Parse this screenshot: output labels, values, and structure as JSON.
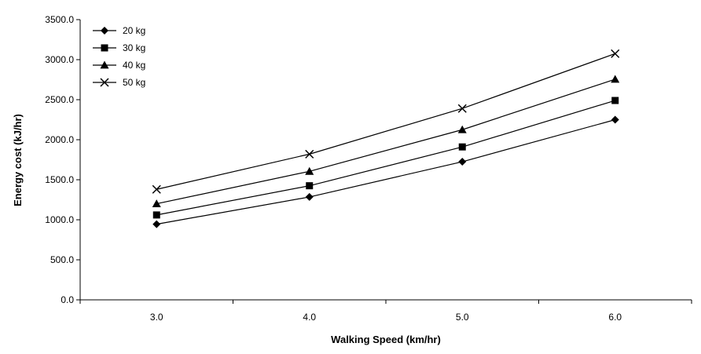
{
  "chart_data": {
    "type": "line",
    "title": "",
    "xlabel": "Walking Speed (km/hr)",
    "ylabel": "Energy cost (kJ/hr)",
    "x": [
      "3.0",
      "4.0",
      "5.0",
      "6.0"
    ],
    "ylim": [
      0,
      3500
    ],
    "yticks": [
      "0.0",
      "500.0",
      "1000.0",
      "1500.0",
      "2000.0",
      "2500.0",
      "3000.0",
      "3500.0"
    ],
    "grid": false,
    "legend_position": "top-left",
    "series": [
      {
        "name": "20 kg",
        "marker": "diamond",
        "color": "#000000",
        "values": [
          945,
          1285,
          1725,
          2250
        ]
      },
      {
        "name": "30 kg",
        "marker": "square",
        "color": "#000000",
        "values": [
          1060,
          1425,
          1910,
          2490
        ]
      },
      {
        "name": "40 kg",
        "marker": "triangle",
        "color": "#000000",
        "values": [
          1200,
          1605,
          2125,
          2755
        ]
      },
      {
        "name": "50 kg",
        "marker": "x",
        "color": "#000000",
        "values": [
          1380,
          1820,
          2390,
          3075
        ]
      }
    ]
  }
}
